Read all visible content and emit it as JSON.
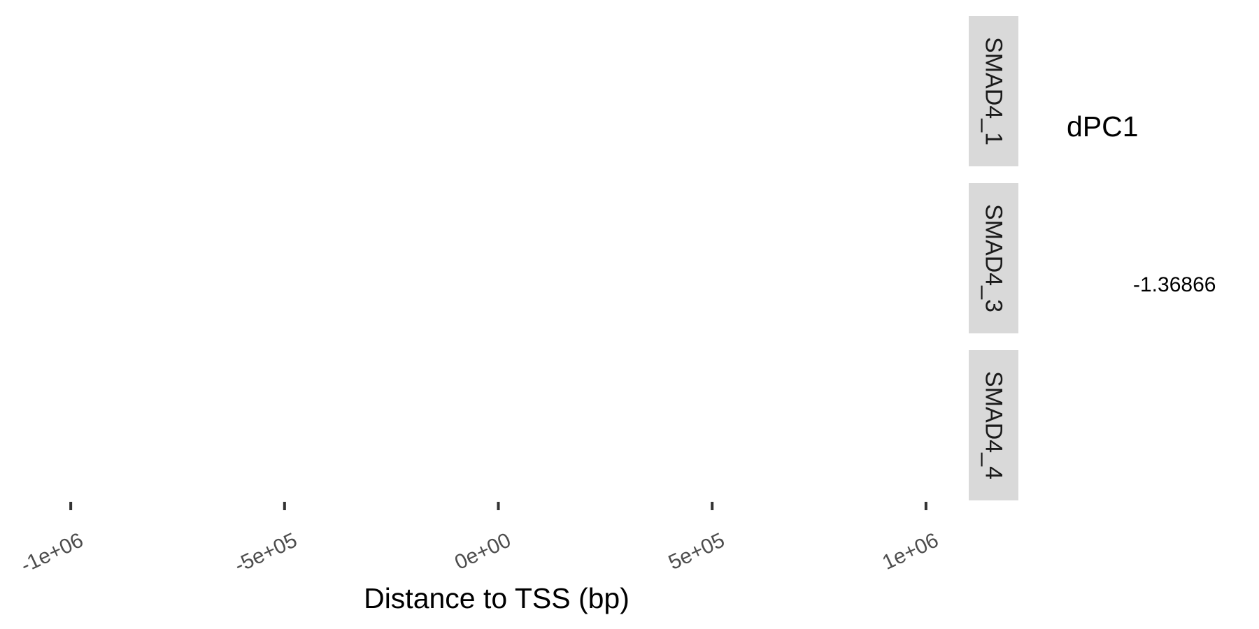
{
  "chart_data": {
    "type": "scatter",
    "title": "",
    "xlabel": "Distance to TSS (bp)",
    "ylabel": "",
    "xlim": [
      -1100000,
      1100000
    ],
    "x_ticks": [
      {
        "value": -1000000,
        "label": "-1e+06"
      },
      {
        "value": -500000,
        "label": "-5e+05"
      },
      {
        "value": 0,
        "label": "0e+00"
      },
      {
        "value": 500000,
        "label": "5e+05"
      },
      {
        "value": 1000000,
        "label": "1e+06"
      }
    ],
    "facets": [
      "SMAD4_1",
      "SMAD4_3",
      "SMAD4_4"
    ],
    "series": [],
    "grid": false,
    "legend": {
      "title": "dPC1",
      "labels": [
        "-1.36866"
      ],
      "placement": "right"
    }
  },
  "colors": {
    "background": "#ffffff",
    "strip_background": "#d9d9d9",
    "tick_color": "#333333",
    "tick_label_color": "#4d4d4d",
    "strip_text_color": "#1a1a1a"
  }
}
